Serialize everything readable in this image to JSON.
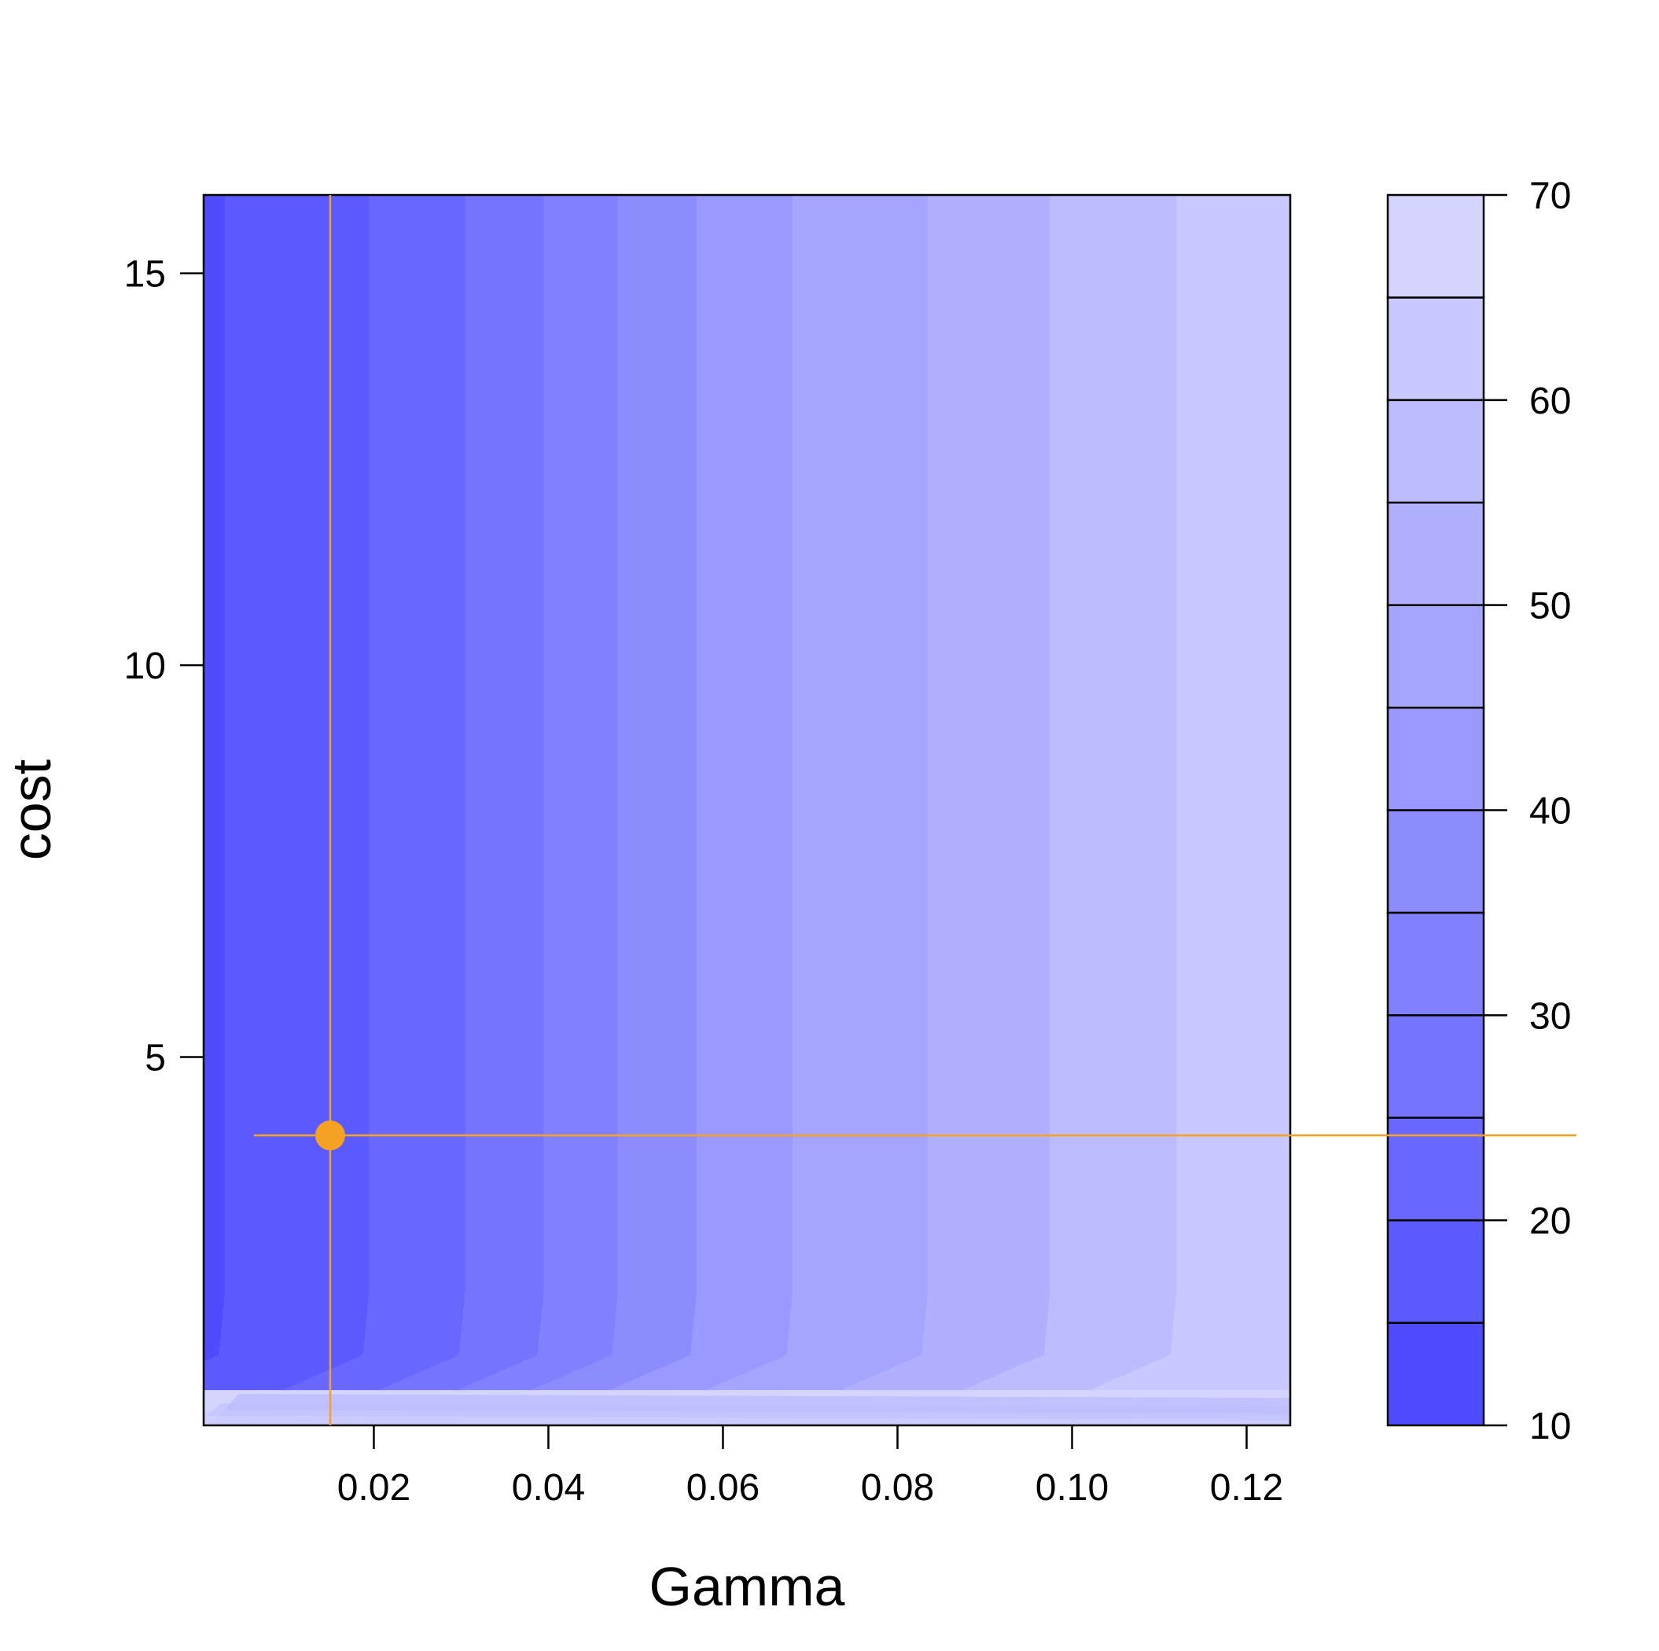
{
  "chart_data": {
    "type": "heatmap",
    "xlabel": "Gamma",
    "ylabel": "cost",
    "xlim": [
      0.0005,
      0.125
    ],
    "ylim": [
      0.3,
      16
    ],
    "x_ticks": [
      0.02,
      0.04,
      0.06,
      0.08,
      0.1,
      0.12
    ],
    "x_tick_labels": [
      "0.02",
      "0.04",
      "0.06",
      "0.08",
      "0.10",
      "0.12"
    ],
    "y_ticks": [
      5,
      10,
      15
    ],
    "y_tick_labels": [
      "5",
      "10",
      "15"
    ],
    "contour_levels": [
      10,
      15,
      20,
      25,
      30,
      35,
      40,
      45,
      50,
      55,
      60,
      65,
      70
    ],
    "contour_boundaries_gamma": [
      0.003,
      0.0195,
      0.0305,
      0.0395,
      0.048,
      0.057,
      0.068,
      0.0835,
      0.0975,
      0.112
    ],
    "colorbar": {
      "min": 10,
      "max": 70,
      "tick_values": [
        10,
        20,
        30,
        40,
        50,
        60,
        70
      ],
      "tick_labels": [
        "10",
        "20",
        "30",
        "40",
        "50",
        "60",
        "70"
      ],
      "colors": [
        "#4f4cff",
        "#5b5aff",
        "#6867ff",
        "#7574ff",
        "#8180ff",
        "#8d8cff",
        "#9999ff",
        "#a5a4ff",
        "#b1b0ff",
        "#bdbcff",
        "#c9c8ff",
        "#d5d4ff"
      ]
    },
    "optimum": {
      "gamma": 0.015,
      "cost": 4,
      "level": 25,
      "color": "#f5a123"
    }
  }
}
